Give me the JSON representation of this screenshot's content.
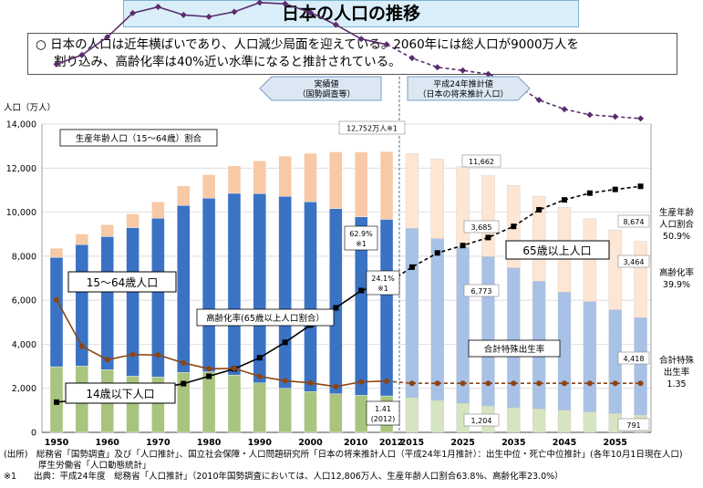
{
  "title": "日本の人口の推移",
  "summary": {
    "bullet": "○",
    "line1": "日本の人口は近年横ばいであり、人口減少局面を迎えている。2060年には総人口が9000万人を",
    "line2": "割り込み、高齢化率は40%近い水準になると推計されている。"
  },
  "banners": {
    "actual_line1": "実績値",
    "actual_line2": "（国勢調査等）",
    "proj_line1": "平成24年推計値",
    "proj_line2": "（日本の将来推計人口）"
  },
  "sources": {
    "line1": "(出所)　総務省「国勢調査」及び「人口推計」、国立社会保障・人口問題研究所「日本の将来推計人口（平成24年1月推計）：出生中位・死亡中位推計」(各年10月1日現在人口)",
    "line2": "　　　　厚生労働省「人口動態統計」",
    "line3": "※1　　出典：平成24年度　総務省「人口推計」（2010年国勢調査においては、人口12,806万人、生産年齢人口割合63.8%、高齢化率23.0%）"
  },
  "chart_data": {
    "type": "bar",
    "subtype": "stacked bar with line overlays",
    "ylabel": "人口（万人）",
    "ylim": [
      0,
      14000
    ],
    "yticks": [
      0,
      2000,
      4000,
      6000,
      8000,
      10000,
      12000,
      14000
    ],
    "ytick_labels": [
      "0",
      "2,000",
      "4,000",
      "6,000",
      "8,000",
      "10,000",
      "12,000",
      "14,000"
    ],
    "xtick_labels": [
      "1950",
      "1960",
      "1970",
      "1980",
      "1990",
      "2000",
      "2010",
      "2012",
      "2015",
      "2025",
      "2035",
      "2045",
      "2055"
    ],
    "categories": [
      "1950",
      "1955",
      "1960",
      "1965",
      "1970",
      "1975",
      "1980",
      "1985",
      "1990",
      "1995",
      "2000",
      "2005",
      "2010",
      "2012",
      "2015",
      "2020",
      "2025",
      "2030",
      "2035",
      "2040",
      "2045",
      "2050",
      "2055",
      "2060"
    ],
    "projection_start_index": 14,
    "series": [
      {
        "name": "14歳以下人口",
        "color": "#a9c47f",
        "color_projection": "#d6e4c2",
        "values": [
          2979,
          3012,
          2843,
          2553,
          2515,
          2722,
          2751,
          2603,
          2249,
          2001,
          1847,
          1752,
          1680,
          1655,
          1583,
          1457,
          1324,
          1204,
          1129,
          1073,
          1012,
          939,
          861,
          791
        ]
      },
      {
        "name": "15～64歳人口",
        "color": "#3a72c4",
        "color_projection": "#a8c1e6",
        "values": [
          4966,
          5517,
          6047,
          6744,
          7212,
          7581,
          7883,
          8251,
          8590,
          8716,
          8622,
          8409,
          8103,
          8018,
          7682,
          7341,
          7085,
          6773,
          6343,
          5787,
          5353,
          5001,
          4706,
          4418
        ]
      },
      {
        "name": "65歳以上人口",
        "color": "#f8c9a6",
        "color_projection": "#fde6d4",
        "values": [
          416,
          479,
          540,
          624,
          739,
          887,
          1065,
          1247,
          1489,
          1826,
          2204,
          2576,
          2948,
          3079,
          3395,
          3612,
          3657,
          3685,
          3741,
          3868,
          3856,
          3768,
          3626,
          3464
        ]
      }
    ],
    "lines": [
      {
        "name": "生産年齢人口（15～64歳）割合",
        "unit": "%",
        "color": "#5a2d6e",
        "values": [
          59.7,
          61.2,
          64.1,
          68.0,
          69.0,
          67.7,
          67.4,
          68.2,
          69.7,
          69.5,
          68.1,
          66.1,
          63.8,
          62.9,
          60.7,
          59.2,
          58.7,
          58.1,
          56.6,
          53.9,
          52.4,
          51.5,
          51.2,
          50.9
        ]
      },
      {
        "name": "高齢化率（65歳以上人口割合）",
        "unit": "%",
        "color": "#000000",
        "values": [
          4.9,
          5.3,
          5.7,
          6.3,
          7.1,
          7.9,
          9.1,
          10.3,
          12.1,
          14.6,
          17.4,
          20.2,
          23.0,
          24.1,
          26.8,
          29.1,
          30.3,
          31.6,
          33.4,
          36.1,
          37.7,
          38.8,
          39.4,
          39.9
        ]
      },
      {
        "name": "合計特殊出生率",
        "unit": "",
        "color": "#8b4513",
        "values": [
          3.65,
          2.37,
          2.0,
          2.14,
          2.13,
          1.91,
          1.75,
          1.76,
          1.54,
          1.42,
          1.36,
          1.26,
          1.39,
          1.41,
          1.35,
          1.35,
          1.35,
          1.35,
          1.35,
          1.35,
          1.35,
          1.35,
          1.35,
          1.35
        ]
      }
    ],
    "labels": {
      "working_age_line": "生産年齢人口（15～64歳）割合",
      "box_15_64": "15～64歳人口",
      "box_65": "65歳以上人口",
      "box_14": "14歳以下人口",
      "aging_line": "高齢化率(65歳以上人口割合）",
      "tfr_line": "合計特殊出生率"
    },
    "annotations": {
      "total_2012": "12,752万人※1",
      "wa_2012_pct": "62.9%",
      "wa_2012_note": "※1",
      "aging_2012_pct": "24.1%",
      "aging_2012_note": "※1",
      "tfr_2012_val": "1.41",
      "tfr_2012_year": "(2012)",
      "val_65_2030": "3,685",
      "val_1564_2030": "6,773",
      "val_14_2030": "1,204",
      "val_total_2030": "11,662",
      "val_total_2060": "8,674",
      "val_65_2060": "3,464",
      "val_1564_2060": "4,418",
      "val_14_2060": "791"
    },
    "right_labels": {
      "wa_1": "生産年齢",
      "wa_2": "人口割合",
      "wa_3": "50.9%",
      "aging_1": "高齢化率",
      "aging_2": "39.9%",
      "tfr_1": "合計特殊",
      "tfr_2": "出生率",
      "tfr_3": "1.35"
    },
    "legend": "inline"
  }
}
